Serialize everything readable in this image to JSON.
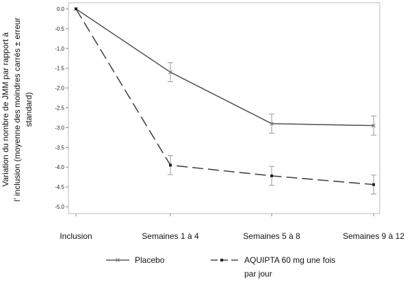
{
  "chart_data": {
    "type": "line",
    "categories": [
      "Inclusion",
      "Semaines 1 à 4",
      "Semaines 5 à 8",
      "Semaines 9 à 12"
    ],
    "ylabel_lines": [
      "Variation du nombre de JMM par rapport à",
      "l’ inclusion (moyenne des moindres carrés ± erreur",
      "standard)"
    ],
    "ylim": [
      -5.0,
      0.0
    ],
    "yticks": [
      0.0,
      -0.5,
      -1.0,
      -1.5,
      -2.0,
      -2.5,
      -3.0,
      -3.5,
      -4.0,
      -4.5,
      -5.0
    ],
    "ytick_labels": [
      "0.0",
      "-0.5",
      "-1.0",
      "-1.5",
      "-2.0",
      "-2.5",
      "-3.0",
      "-3.5",
      "-4.0",
      "-4.5",
      "-5.0"
    ],
    "grid": false,
    "legend_position": "bottom",
    "series": [
      {
        "name": "Placebo",
        "values": [
          0.0,
          -1.6,
          -2.9,
          -2.95
        ],
        "error": [
          0.0,
          0.24,
          0.24,
          0.24
        ],
        "color": "#555555",
        "dashed": false,
        "marker": "x"
      },
      {
        "name": "AQUIPTA 60 mg une fois par jour",
        "legend_lines": [
          "AQUIPTA 60 mg une fois",
          "par jour"
        ],
        "values": [
          0.0,
          -3.95,
          -4.22,
          -4.44
        ],
        "error": [
          0.0,
          0.24,
          0.24,
          0.24
        ],
        "color": "#444444",
        "dashed": true,
        "marker": "square"
      }
    ]
  }
}
